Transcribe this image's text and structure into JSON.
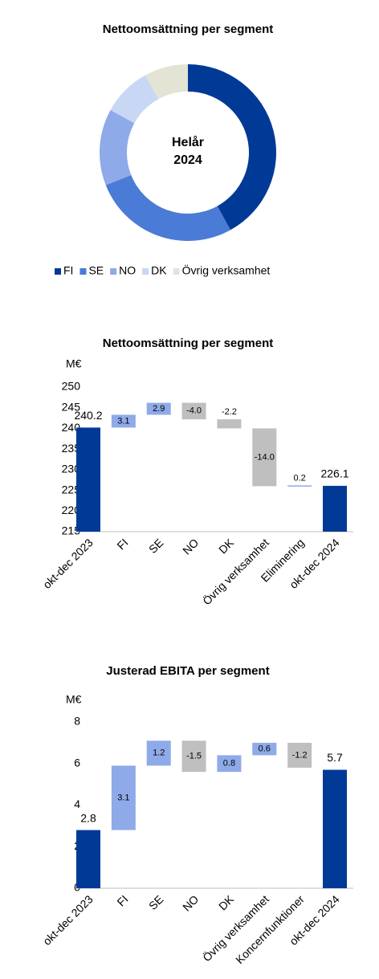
{
  "chart_data": [
    {
      "type": "donut",
      "title": "Nettoomsättning per segment",
      "center_label": [
        "Helår",
        "2024"
      ],
      "categories": [
        "FI",
        "SE",
        "NO",
        "DK",
        "Övrig verksamhet"
      ],
      "values": [
        42,
        27,
        14,
        9,
        8
      ],
      "colors": [
        "#003a96",
        "#4a7bd6",
        "#8eaae8",
        "#c8d7f4",
        "#e4e4d4"
      ]
    },
    {
      "type": "waterfall",
      "title": "Nettoomsättning per segment",
      "y_label": "M€",
      "categories": [
        "okt-dec 2023",
        "FI",
        "SE",
        "NO",
        "DK",
        "Övrig verksamhet",
        "Eliminering",
        "okt-dec 2024"
      ],
      "values": [
        240.2,
        3.1,
        2.9,
        -4.0,
        -2.2,
        -14.0,
        0.2,
        226.1
      ],
      "value_labels": [
        "240.2",
        "3.1",
        "2.9",
        "-4.0",
        "-2.2",
        "-14.0",
        "0.2",
        "226.1"
      ],
      "total_color": "#003a96",
      "increase_color": "#8eaae8",
      "decrease_color": "#bfbfbf",
      "ylim": [
        215,
        250
      ],
      "yticks": [
        215,
        220,
        225,
        230,
        235,
        240,
        245,
        250
      ]
    },
    {
      "type": "waterfall",
      "title": "Justerad EBITA per segment",
      "y_label": "M€",
      "categories": [
        "okt-dec 2023",
        "FI",
        "SE",
        "NO",
        "DK",
        "Övrig verksamhet",
        "Koncernfunktioner",
        "okt-dec 2024"
      ],
      "values": [
        2.8,
        3.1,
        1.2,
        -1.5,
        0.8,
        0.6,
        -1.2,
        5.7
      ],
      "value_labels": [
        "2.8",
        "3.1",
        "1.2",
        "-1.5",
        "0.8",
        "0.6",
        "-1.2",
        "5.7"
      ],
      "total_color": "#003a96",
      "increase_color": "#8eaae8",
      "decrease_color": "#bfbfbf",
      "ylim": [
        0,
        8
      ],
      "yticks": [
        0,
        2,
        4,
        6,
        8
      ]
    }
  ]
}
